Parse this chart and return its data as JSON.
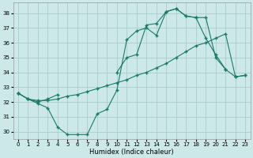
{
  "xlabel": "Humidex (Indice chaleur)",
  "bg_color": "#cce8e8",
  "grid_color": "#aacccc",
  "line_color": "#1a7a6a",
  "xlim": [
    -0.5,
    23.5
  ],
  "ylim": [
    29.5,
    38.7
  ],
  "xticks": [
    0,
    1,
    2,
    3,
    4,
    5,
    6,
    7,
    8,
    9,
    10,
    11,
    12,
    13,
    14,
    15,
    16,
    17,
    18,
    19,
    20,
    21,
    22,
    23
  ],
  "yticks": [
    30,
    31,
    32,
    33,
    34,
    35,
    36,
    37,
    38
  ],
  "line1_x": [
    0,
    1,
    2,
    3,
    4,
    5,
    6,
    7,
    8,
    9,
    10,
    11,
    12,
    13,
    14,
    15,
    16,
    17,
    18,
    19,
    20,
    21
  ],
  "line1_y": [
    32.6,
    32.2,
    31.9,
    31.6,
    30.3,
    29.8,
    29.8,
    29.8,
    31.2,
    31.5,
    32.8,
    36.2,
    36.8,
    37.0,
    36.5,
    38.1,
    38.3,
    37.8,
    37.7,
    36.3,
    35.2,
    34.2
  ],
  "line2_x": [
    0,
    1,
    2,
    3,
    4,
    5,
    6,
    7,
    8,
    9,
    10,
    11,
    12,
    13,
    14,
    15,
    16,
    17,
    18,
    19,
    20,
    21,
    22,
    23
  ],
  "line2_y": [
    32.6,
    32.2,
    32.1,
    32.1,
    32.2,
    32.4,
    32.5,
    32.7,
    32.9,
    33.1,
    33.3,
    33.5,
    33.8,
    34.0,
    34.3,
    34.6,
    35.0,
    35.4,
    35.8,
    36.0,
    36.3,
    36.6,
    33.7,
    33.8
  ],
  "line3_x": [
    0,
    1,
    2,
    3,
    4,
    10,
    11,
    12,
    13,
    14,
    15,
    16,
    17,
    18,
    19,
    20,
    21,
    22,
    23
  ],
  "line3_y": [
    32.6,
    32.2,
    32.0,
    32.2,
    32.5,
    34.0,
    35.0,
    35.2,
    37.2,
    37.3,
    38.1,
    38.3,
    37.8,
    37.7,
    37.7,
    35.0,
    34.2,
    33.7,
    33.8
  ]
}
